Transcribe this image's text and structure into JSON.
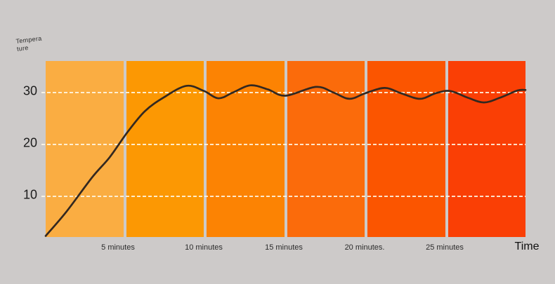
{
  "page": {
    "background": "#CDCAC9"
  },
  "chart_data": {
    "type": "line",
    "title": "",
    "xlabel": "Time",
    "ylabel": "Temperature",
    "ylabel_lines": [
      "Tempera",
      "ture"
    ],
    "x_tick_labels": [
      "5 minutes",
      "10 minutes",
      "15 minutes",
      "20 minutes.",
      "25 minutes"
    ],
    "y_tick_labels": [
      "30",
      "20",
      "10"
    ],
    "y_ticks": [
      30,
      20,
      10
    ],
    "xlim": [
      0,
      30
    ],
    "ylim": [
      2,
      36
    ],
    "x_unit": "minutes",
    "grid": "horizontal-dashed-white",
    "legend": "none",
    "band_colors": [
      "#FAAD42",
      "#FC9803",
      "#FC8303",
      "#FB6B0B",
      "#FB5500",
      "#FA3F05"
    ],
    "line_color": "#332820",
    "series": [
      {
        "name": "temperature",
        "points": [
          [
            0,
            2.2
          ],
          [
            1.3,
            6.9
          ],
          [
            2.9,
            13.5
          ],
          [
            4.0,
            17.4
          ],
          [
            5.1,
            22.2
          ],
          [
            6.2,
            26.3
          ],
          [
            7.4,
            29.0
          ],
          [
            8.8,
            31.2
          ],
          [
            9.9,
            30.2
          ],
          [
            10.8,
            28.8
          ],
          [
            11.7,
            29.9
          ],
          [
            12.8,
            31.3
          ],
          [
            13.9,
            30.5
          ],
          [
            15.0,
            29.3
          ],
          [
            16.9,
            31.0
          ],
          [
            18.0,
            29.9
          ],
          [
            19.0,
            28.7
          ],
          [
            20.0,
            29.8
          ],
          [
            21.2,
            30.8
          ],
          [
            22.2,
            29.8
          ],
          [
            23.4,
            28.7
          ],
          [
            24.4,
            29.8
          ],
          [
            25.3,
            30.2
          ],
          [
            26.4,
            28.9
          ],
          [
            27.4,
            28.0
          ],
          [
            28.4,
            28.9
          ],
          [
            29.5,
            30.3
          ],
          [
            30,
            30.4
          ]
        ]
      }
    ]
  }
}
